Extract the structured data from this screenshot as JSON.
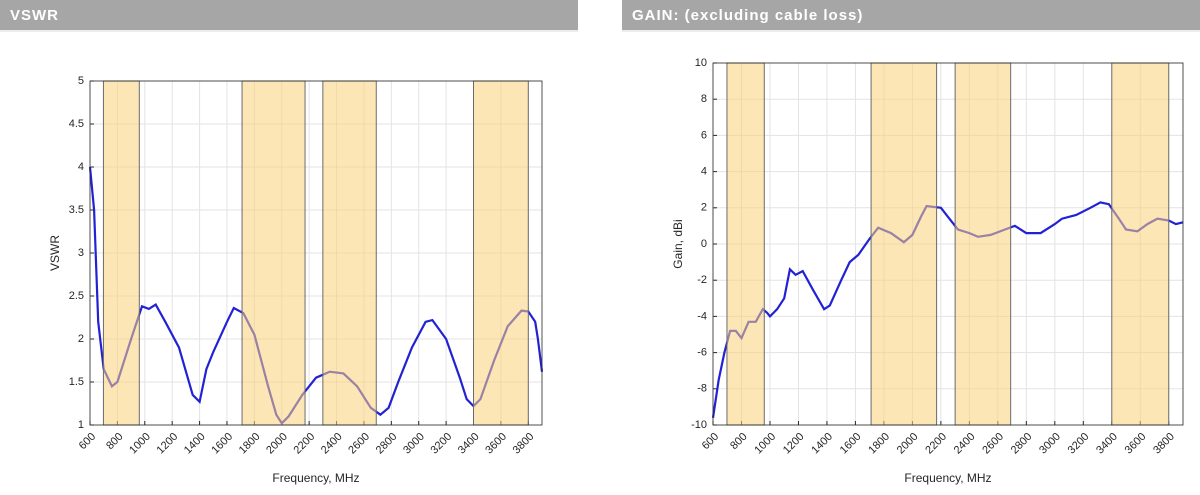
{
  "chart_data": [
    {
      "type": "line",
      "title": "VSWR",
      "xlabel": "Frequency, MHz",
      "ylabel": "VSWR",
      "xlim": [
        600,
        3900
      ],
      "xticks": [
        600,
        800,
        1000,
        1200,
        1400,
        1600,
        1800,
        2000,
        2200,
        2400,
        2600,
        2800,
        3000,
        3200,
        3400,
        3600,
        3800
      ],
      "ylim": [
        1,
        5
      ],
      "yticks": [
        1,
        1.5,
        2,
        2.5,
        3,
        3.5,
        4,
        4.5,
        5
      ],
      "grid": true,
      "color": "#2222d4",
      "band_color": "#fbd27a",
      "bands": [
        {
          "start": 698,
          "end": 960
        },
        {
          "start": 1710,
          "end": 2170
        },
        {
          "start": 2300,
          "end": 2690
        },
        {
          "start": 3400,
          "end": 3800
        }
      ],
      "x": [
        600,
        630,
        660,
        700,
        760,
        800,
        900,
        980,
        1030,
        1080,
        1150,
        1250,
        1350,
        1400,
        1450,
        1500,
        1600,
        1650,
        1720,
        1800,
        1900,
        1960,
        2000,
        2050,
        2150,
        2250,
        2350,
        2450,
        2550,
        2650,
        2720,
        2780,
        2850,
        2950,
        3050,
        3100,
        3200,
        3300,
        3350,
        3400,
        3450,
        3550,
        3650,
        3750,
        3800,
        3850,
        3870,
        3900
      ],
      "values": [
        4.0,
        3.5,
        2.2,
        1.65,
        1.45,
        1.5,
        2.0,
        2.38,
        2.35,
        2.4,
        2.2,
        1.9,
        1.35,
        1.27,
        1.65,
        1.85,
        2.2,
        2.36,
        2.3,
        2.05,
        1.45,
        1.12,
        1.02,
        1.1,
        1.35,
        1.55,
        1.62,
        1.6,
        1.45,
        1.2,
        1.12,
        1.2,
        1.5,
        1.9,
        2.2,
        2.22,
        2.0,
        1.55,
        1.3,
        1.22,
        1.3,
        1.75,
        2.15,
        2.33,
        2.32,
        2.2,
        2.0,
        1.62
      ]
    },
    {
      "type": "line",
      "title": "GAIN: (excluding cable loss)",
      "xlabel": "Frequency, MHz",
      "ylabel": "Gain, dBi",
      "xlim": [
        600,
        3900
      ],
      "xticks": [
        600,
        800,
        1000,
        1200,
        1400,
        1600,
        1800,
        2000,
        2200,
        2400,
        2600,
        2800,
        3000,
        3200,
        3400,
        3600,
        3800
      ],
      "ylim": [
        -10,
        10
      ],
      "yticks": [
        -10,
        -8,
        -6,
        -4,
        -2,
        0,
        2,
        4,
        6,
        8,
        10
      ],
      "grid": true,
      "color": "#2222d4",
      "band_color": "#fbd27a",
      "bands": [
        {
          "start": 698,
          "end": 960
        },
        {
          "start": 1710,
          "end": 2170
        },
        {
          "start": 2300,
          "end": 2690
        },
        {
          "start": 3400,
          "end": 3800
        }
      ],
      "x": [
        600,
        640,
        680,
        720,
        760,
        800,
        850,
        900,
        950,
        980,
        1000,
        1050,
        1100,
        1140,
        1180,
        1230,
        1300,
        1380,
        1420,
        1500,
        1560,
        1620,
        1700,
        1760,
        1850,
        1940,
        2000,
        2060,
        2100,
        2200,
        2260,
        2320,
        2400,
        2460,
        2550,
        2650,
        2720,
        2800,
        2900,
        3000,
        3050,
        3150,
        3250,
        3320,
        3380,
        3450,
        3500,
        3580,
        3650,
        3720,
        3800,
        3850,
        3900
      ],
      "values": [
        -9.6,
        -7.5,
        -6,
        -4.8,
        -4.8,
        -5.2,
        -4.3,
        -4.3,
        -3.6,
        -3.8,
        -4.0,
        -3.6,
        -3.0,
        -1.4,
        -1.7,
        -1.5,
        -2.5,
        -3.6,
        -3.4,
        -2.0,
        -1.0,
        -0.6,
        0.3,
        0.9,
        0.6,
        0.1,
        0.5,
        1.5,
        2.1,
        2.0,
        1.4,
        0.8,
        0.6,
        0.4,
        0.5,
        0.8,
        1.0,
        0.6,
        0.6,
        1.1,
        1.4,
        1.6,
        2.0,
        2.3,
        2.2,
        1.4,
        0.8,
        0.7,
        1.1,
        1.4,
        1.3,
        1.1,
        1.2
      ]
    }
  ]
}
